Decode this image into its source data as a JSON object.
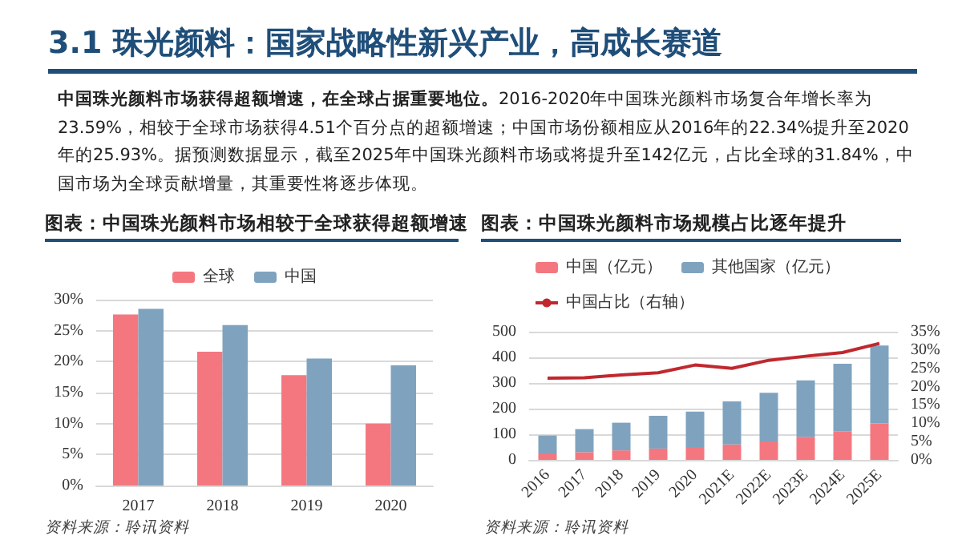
{
  "chart_data": [
    {
      "type": "bar",
      "title": "图表：中国珠光颜料市场相较于全球获得超额增速",
      "annotations": [
        "3.1 珠光颜料：国家战略性新兴产业，高成长赛道",
        "中国珠光颜料市场获得超额增速，在全球占据重要地位。",
        "2016-2020年中国珠光颜料市场复合年增长率为23.59%，相较于全球市场获得4.51个百分点的超额增速；中国市场份额相应从2016年的22.34%提升至2020年的25.93%。据预测数据显示，截至2025年中国珠光颜料市场或将提升至142亿元，占比全球的31.84%，中国市场为全球贡献增量，其重要性将逐步体现。",
        "资料来源：聆讯资料"
      ],
      "categories": [
        "2017",
        "2018",
        "2019",
        "2020"
      ],
      "series": [
        {
          "name": "全球",
          "color": "#f4777f",
          "values": [
            27.6,
            21.6,
            17.8,
            10.0
          ]
        },
        {
          "name": "中国",
          "color": "#7fa3bf",
          "values": [
            28.5,
            25.9,
            20.5,
            19.4
          ]
        }
      ],
      "ylim": [
        0,
        30
      ],
      "yticks": [
        {
          "value": 0,
          "label": "0%"
        },
        {
          "value": 5,
          "label": "5%"
        },
        {
          "value": 10,
          "label": "10%"
        },
        {
          "value": 15,
          "label": "15%"
        },
        {
          "value": 20,
          "label": "20%"
        },
        {
          "value": 25,
          "label": "25%"
        },
        {
          "value": 30,
          "label": "30%"
        }
      ],
      "grid": "y",
      "legend": "top"
    },
    {
      "type": "bar",
      "title": "图表：中国珠光颜料市场规模占比逐年提升",
      "annotations": [
        "资料来源：聆讯资料"
      ],
      "categories": [
        "2016",
        "2017",
        "2018",
        "2019",
        "2020",
        "2021E",
        "2022E",
        "2023E",
        "2024E",
        "2025E"
      ],
      "stacked": true,
      "series": [
        {
          "name": "中国（亿元）",
          "color": "#f4777f",
          "values": [
            25,
            30,
            37,
            44,
            50,
            60,
            72,
            90,
            110,
            142
          ]
        },
        {
          "name": "其他国家（亿元）",
          "color": "#7fa3bf",
          "values": [
            70,
            90,
            108,
            128,
            138,
            168,
            190,
            220,
            265,
            304
          ]
        },
        {
          "name": "中国占比（右轴）",
          "type": "line",
          "axis": "y2",
          "color": "#c0282e",
          "values": [
            22.3,
            22.4,
            23.2,
            23.8,
            25.9,
            25.0,
            27.2,
            28.3,
            29.3,
            31.8
          ]
        }
      ],
      "ylim": [
        0,
        500
      ],
      "yticks": [
        0,
        100,
        200,
        300,
        400,
        500
      ],
      "y2lim": [
        0,
        35
      ],
      "y2ticks": [
        {
          "value": 0,
          "label": "0%"
        },
        {
          "value": 5,
          "label": "5%"
        },
        {
          "value": 10,
          "label": "10%"
        },
        {
          "value": 15,
          "label": "15%"
        },
        {
          "value": 20,
          "label": "20%"
        },
        {
          "value": 25,
          "label": "25%"
        },
        {
          "value": 30,
          "label": "30%"
        },
        {
          "value": 35,
          "label": "35%"
        }
      ],
      "grid": "y",
      "legend": "top left"
    }
  ]
}
